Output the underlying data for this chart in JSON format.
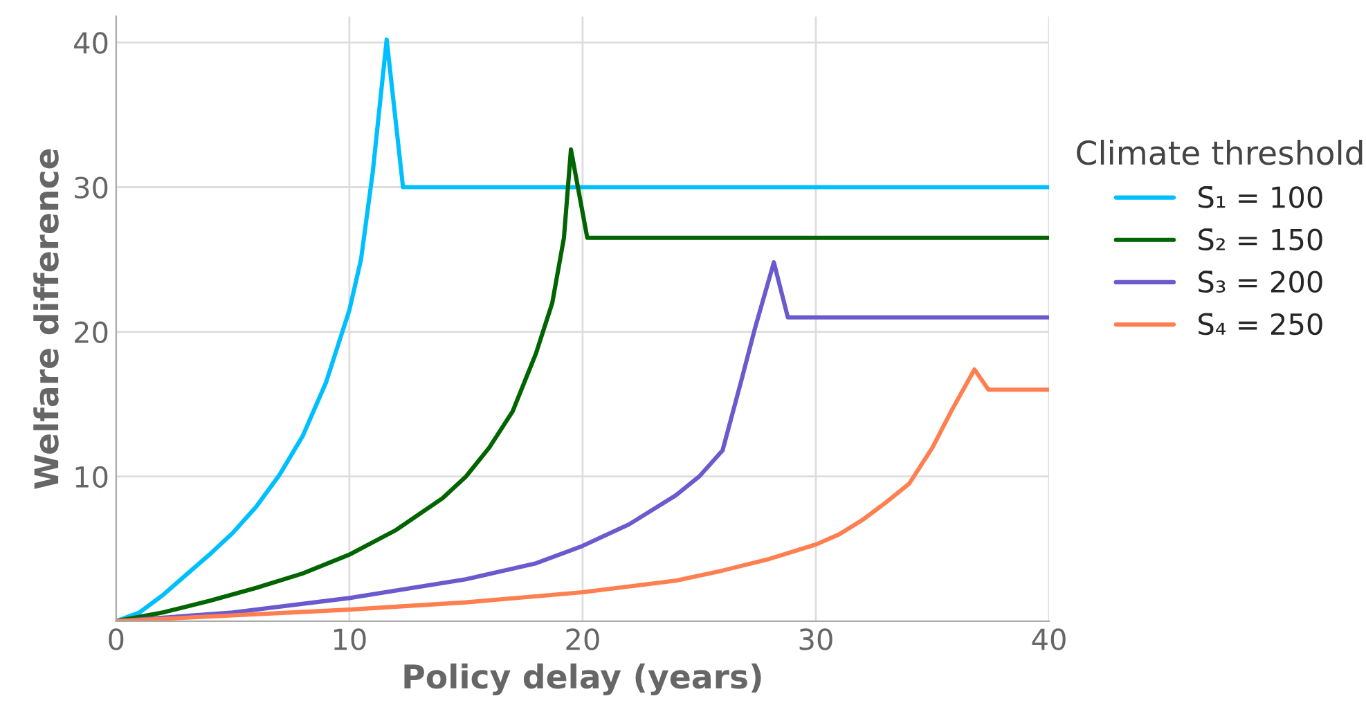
{
  "chart_data": {
    "type": "line",
    "xlabel": "Policy delay (years)",
    "ylabel": "Welfare difference",
    "legend_title": "Climate threshold",
    "legend": "right",
    "grid": true,
    "marker": "none",
    "line_style": "solid",
    "xlim": [
      0,
      40
    ],
    "xticks": [
      0,
      10,
      20,
      30,
      40
    ],
    "ylim": [
      0,
      41.8
    ],
    "yticks": [
      10,
      20,
      30,
      40
    ],
    "series": [
      {
        "name": "S̄₁ = 100",
        "color": "#00bfff",
        "x": [
          0,
          1,
          2,
          3,
          4,
          5,
          6,
          7,
          8,
          9,
          10,
          10.5,
          11,
          11.6,
          12.3,
          40
        ],
        "values": [
          0,
          0.6,
          1.8,
          3.2,
          4.6,
          6.1,
          7.9,
          10.1,
          12.8,
          16.5,
          21.5,
          25,
          31,
          40.2,
          30,
          30
        ]
      },
      {
        "name": "S̄₂ = 150",
        "color": "#006400",
        "x": [
          0,
          2,
          4,
          6,
          8,
          10,
          12,
          14,
          15,
          16,
          17,
          18,
          18.7,
          19.2,
          19.5,
          20.2,
          40
        ],
        "values": [
          0,
          0.6,
          1.4,
          2.3,
          3.3,
          4.6,
          6.3,
          8.5,
          10.0,
          12.0,
          14.5,
          18.5,
          22,
          26.5,
          32.6,
          26.5,
          26.5
        ]
      },
      {
        "name": "S̄₃ = 200",
        "color": "#6a5acd",
        "x": [
          0,
          5,
          10,
          15,
          18,
          20,
          22,
          24,
          25,
          26,
          26.8,
          27.4,
          28.2,
          28.8,
          40
        ],
        "values": [
          0,
          0.6,
          1.6,
          2.9,
          4.0,
          5.2,
          6.7,
          8.7,
          10.0,
          11.8,
          16.6,
          20.3,
          24.8,
          21,
          21
        ]
      },
      {
        "name": "S̄₄ = 250",
        "color": "#ff7f50",
        "x": [
          0,
          10,
          15,
          20,
          24,
          26,
          28,
          30,
          31,
          32,
          33,
          34,
          35,
          35.8,
          36.8,
          37.4,
          40
        ],
        "values": [
          0,
          0.8,
          1.3,
          2.0,
          2.8,
          3.5,
          4.3,
          5.3,
          6.0,
          7.0,
          8.2,
          9.5,
          12.0,
          14.5,
          17.4,
          16,
          16
        ]
      }
    ]
  }
}
